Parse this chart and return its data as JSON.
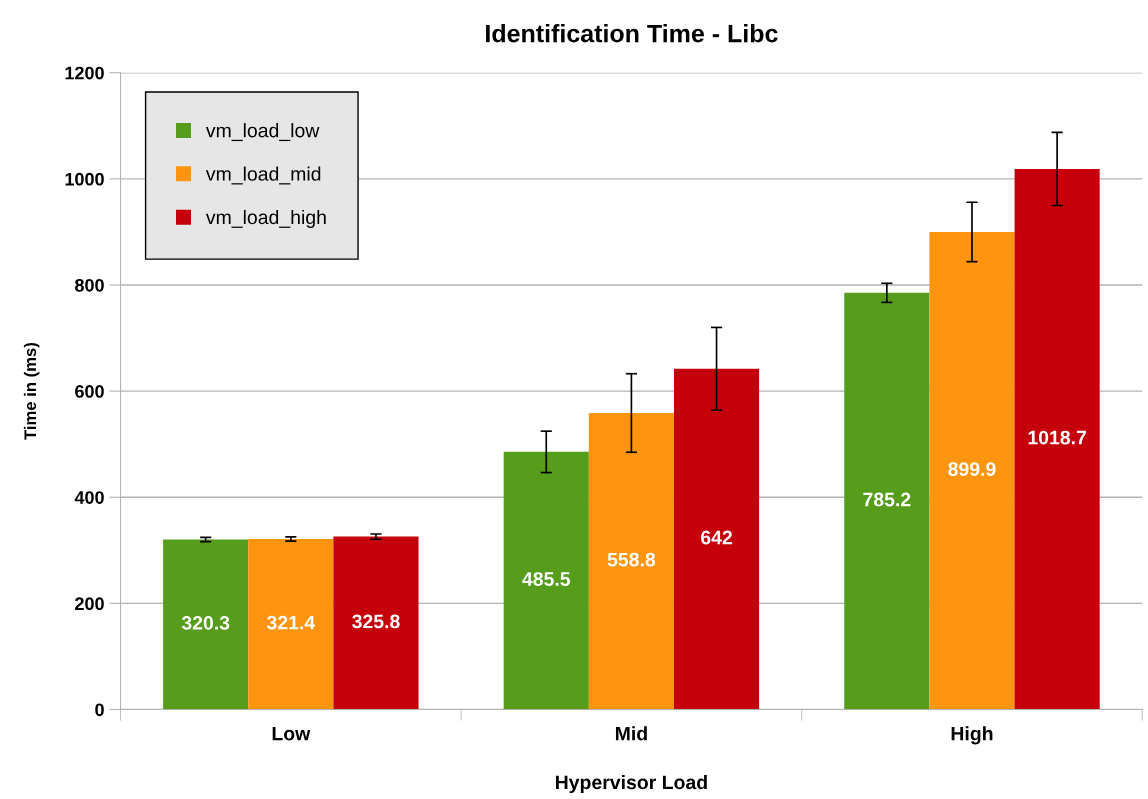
{
  "chart_data": {
    "type": "bar",
    "title": "Identification Time - Libc",
    "xlabel": "Hypervisor Load",
    "ylabel": "Time in (ms)",
    "categories": [
      "Low",
      "Mid",
      "High"
    ],
    "series": [
      {
        "name": "vm_load_low",
        "color": "#579d1c",
        "values": [
          320.3,
          485.5,
          785.2
        ],
        "errors": [
          4,
          39,
          18
        ]
      },
      {
        "name": "vm_load_mid",
        "color": "#ff950e",
        "values": [
          321.4,
          558.8,
          899.9
        ],
        "errors": [
          4,
          74,
          56
        ]
      },
      {
        "name": "vm_load_high",
        "color": "#c5000b",
        "values": [
          325.8,
          642,
          1018.7
        ],
        "errors": [
          5,
          78,
          69
        ]
      }
    ],
    "ylim": [
      0,
      1200
    ],
    "yticks": [
      0,
      200,
      400,
      600,
      800,
      1000,
      1200
    ],
    "grid": "y",
    "legend": "top left",
    "data_labels": true
  }
}
